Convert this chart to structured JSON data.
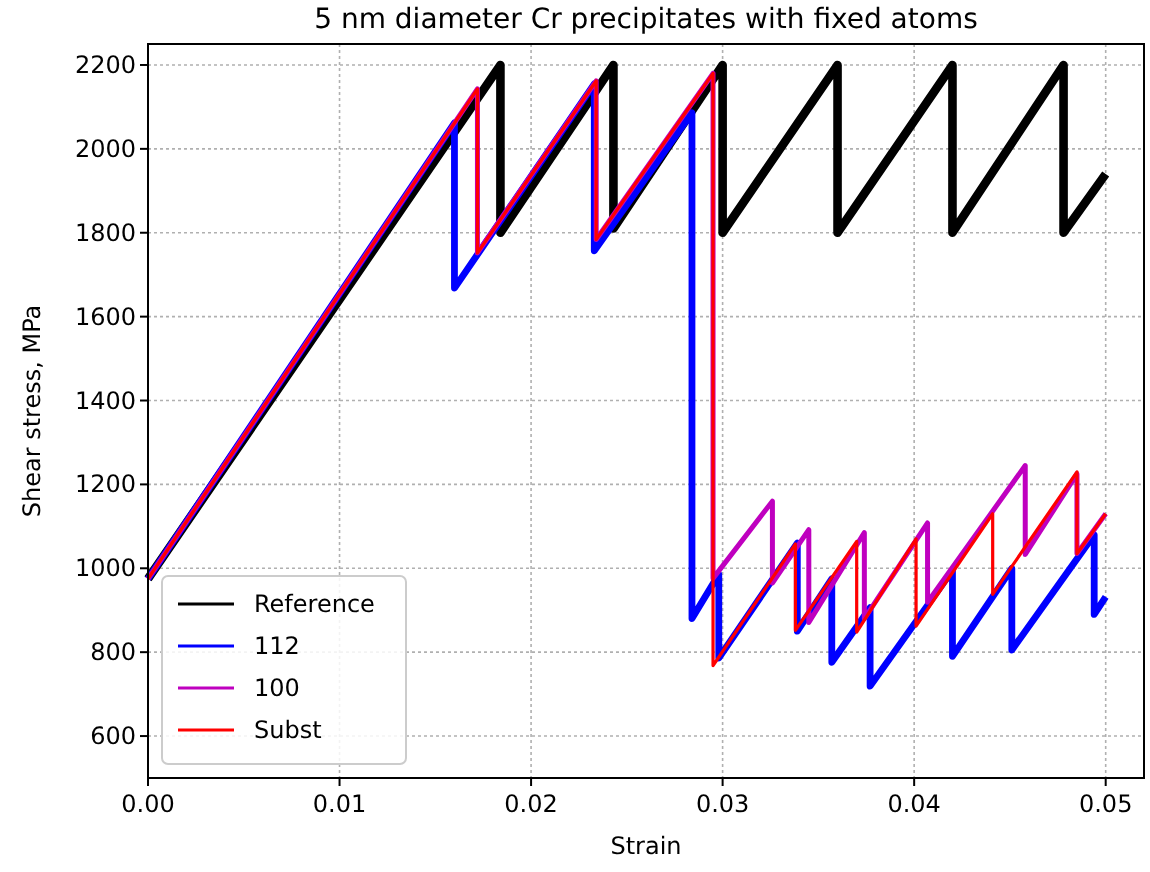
{
  "chart_data": {
    "type": "line",
    "title": "5 nm diameter Cr precipitates with fixed atoms",
    "xlabel": "Strain",
    "ylabel": "Shear stress, MPa",
    "xlim": [
      0,
      0.052
    ],
    "ylim": [
      500,
      2250
    ],
    "xticks": [
      {
        "value": 0,
        "label": "0.00"
      },
      {
        "value": 0.01,
        "label": "0.01"
      },
      {
        "value": 0.02,
        "label": "0.02"
      },
      {
        "value": 0.03,
        "label": "0.03"
      },
      {
        "value": 0.04,
        "label": "0.04"
      },
      {
        "value": 0.05,
        "label": "0.05"
      }
    ],
    "yticks": [
      600,
      800,
      1000,
      1200,
      1400,
      1600,
      1800,
      2000,
      2200
    ],
    "grid": true,
    "legend": "bottom left",
    "line_style": "solid",
    "marker": "none",
    "series": [
      {
        "name": "Reference",
        "color": "#000000",
        "x": [
          0,
          0.0184,
          0.0184,
          0.0243,
          0.0243,
          0.03,
          0.03,
          0.036,
          0.036,
          0.042,
          0.042,
          0.0478,
          0.0478,
          0.05
        ],
        "values": [
          975,
          2200,
          1800,
          2200,
          1810,
          2200,
          1800,
          2200,
          1800,
          2200,
          1800,
          2200,
          1800,
          1940
        ]
      },
      {
        "name": "112",
        "color": "#0000ff",
        "x": [
          0,
          0.016,
          0.016,
          0.0233,
          0.0233,
          0.0284,
          0.0284,
          0.0298,
          0.0298,
          0.0339,
          0.0339,
          0.0357,
          0.0357,
          0.0377,
          0.0377,
          0.042,
          0.042,
          0.0451,
          0.0451,
          0.0494,
          0.0494,
          0.05
        ],
        "values": [
          975,
          2062,
          1668,
          2155,
          1757,
          2086,
          880,
          986,
          786,
          1060,
          850,
          975,
          776,
          906,
          719,
          995,
          790,
          1000,
          805,
          1080,
          890,
          932
        ]
      },
      {
        "name": "100",
        "color": "#bf00bf",
        "x": [
          0,
          0.0172,
          0.0172,
          0.0234,
          0.0234,
          0.0295,
          0.0295,
          0.0326,
          0.0326,
          0.0345,
          0.0345,
          0.0374,
          0.0374,
          0.0407,
          0.0407,
          0.0458,
          0.0458,
          0.0485,
          0.0485,
          0.05
        ],
        "values": [
          975,
          2143,
          1752,
          2162,
          1784,
          2180,
          976,
          1160,
          965,
          1092,
          871,
          1085,
          880,
          1108,
          919,
          1245,
          1033,
          1225,
          1035,
          1130
        ]
      },
      {
        "name": "Subst",
        "color": "#ff0000",
        "x": [
          0,
          0.0172,
          0.0172,
          0.0234,
          0.0234,
          0.0295,
          0.0295,
          0.0338,
          0.0338,
          0.037,
          0.037,
          0.0401,
          0.0401,
          0.0441,
          0.0441,
          0.0485,
          0.0485,
          0.05
        ],
        "values": [
          975,
          2143,
          1752,
          2162,
          1784,
          2180,
          768,
          1058,
          852,
          1064,
          848,
          1070,
          862,
          1130,
          938,
          1230,
          1035,
          1130
        ]
      }
    ]
  }
}
